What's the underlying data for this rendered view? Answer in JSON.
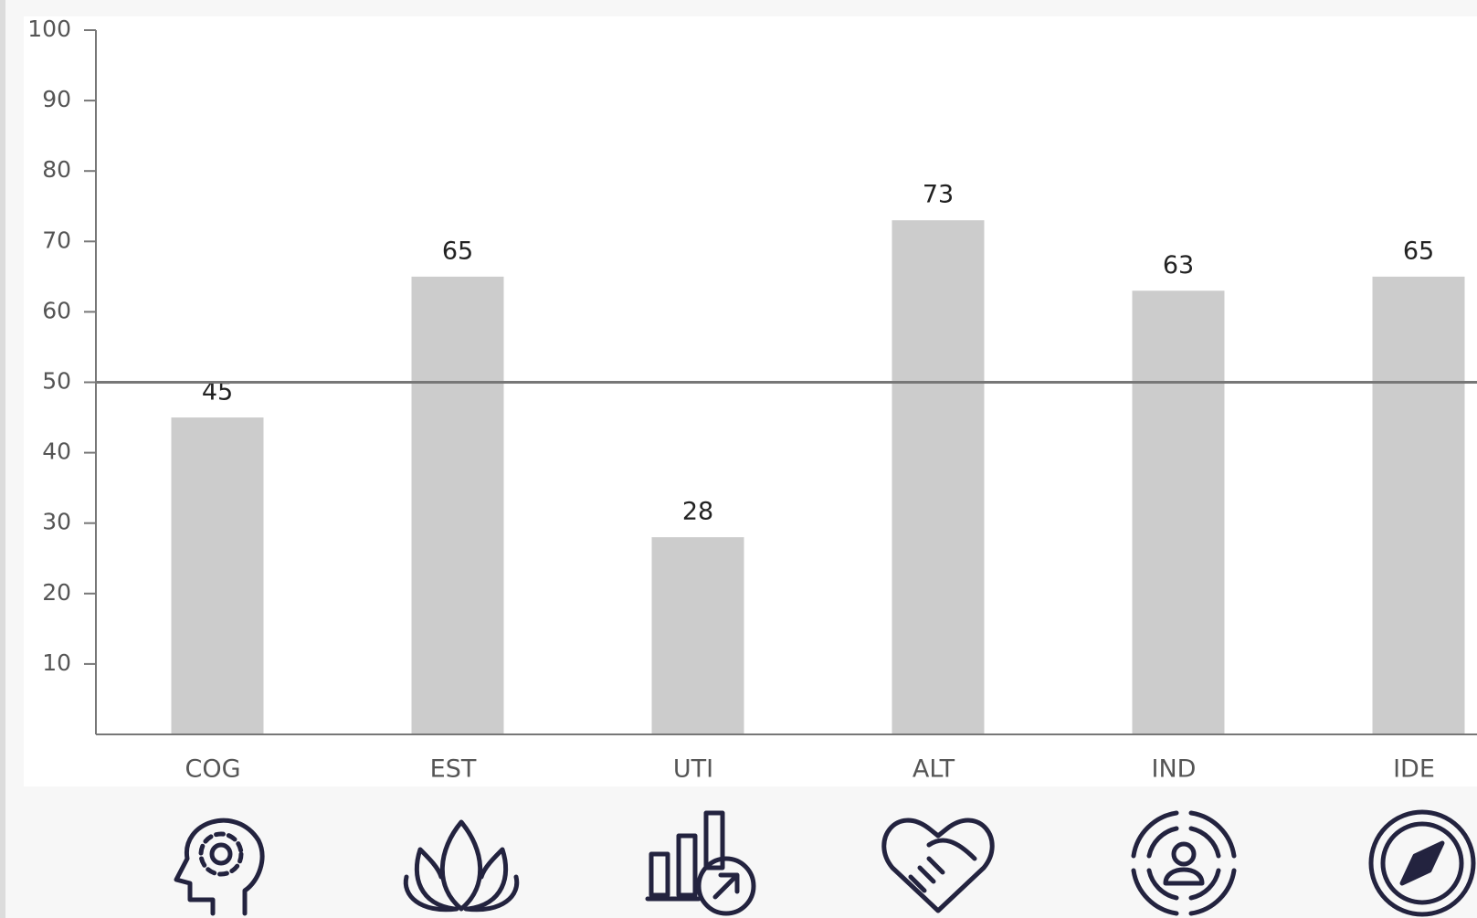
{
  "chart_data": {
    "type": "bar",
    "categories": [
      "COG",
      "EST",
      "UTI",
      "ALT",
      "IND",
      "IDE"
    ],
    "values": [
      45,
      65,
      28,
      73,
      63,
      65
    ],
    "color": "#cccccc",
    "ylim": [
      0,
      100
    ],
    "yticks": [
      10,
      20,
      30,
      40,
      50,
      60,
      70,
      80,
      90,
      100
    ],
    "reference_line": 50
  }
}
